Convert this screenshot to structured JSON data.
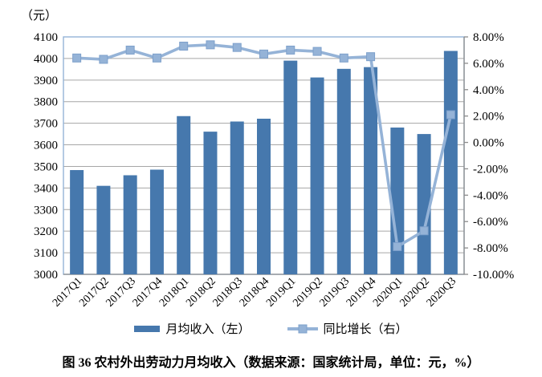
{
  "chart_data": {
    "type": "bar+line combo",
    "categories": [
      "2017Q1",
      "2017Q2",
      "2017Q3",
      "2017Q4",
      "2018Q1",
      "2018Q2",
      "2018Q3",
      "2018Q4",
      "2019Q1",
      "2019Q2",
      "2019Q3",
      "2019Q4",
      "2020Q1",
      "2020Q2",
      "2020Q3"
    ],
    "series": [
      {
        "name": "月均收入（左）",
        "type": "bar",
        "axis": "left",
        "values": [
          3483,
          3410,
          3459,
          3485,
          3733,
          3661,
          3708,
          3721,
          3990,
          3912,
          3952,
          3960,
          3680,
          3650,
          4035
        ]
      },
      {
        "name": "同比增长（右）",
        "type": "line",
        "axis": "right",
        "values": [
          6.4,
          6.3,
          7.0,
          6.4,
          7.3,
          7.4,
          7.2,
          6.7,
          7.0,
          6.9,
          6.4,
          6.5,
          -7.9,
          -6.7,
          2.1
        ]
      }
    ],
    "left_axis": {
      "title": "（元）",
      "min": 3000,
      "max": 4100,
      "step": 100
    },
    "right_axis": {
      "min": -10,
      "max": 8,
      "step": 2,
      "tick_format": "0.00%"
    },
    "grid": true,
    "legend_position": "bottom",
    "colors": {
      "bar": "#4678AD",
      "line": "#95B3D7",
      "marker_edge": "#7DA0CB",
      "grid": "#A6A6A6",
      "axis": "#8C8C8C",
      "plot_border": "#95B3D7"
    },
    "title": "图 36 农村外出劳动力月均收入（数据来源：国家统计局，单位：元，%）"
  },
  "legend": {
    "bar_label": "月均收入（左）",
    "line_label": "同比增长（右）"
  },
  "caption": "图 36 农村外出劳动力月均收入（数据来源：国家统计局，单位：元，%）"
}
